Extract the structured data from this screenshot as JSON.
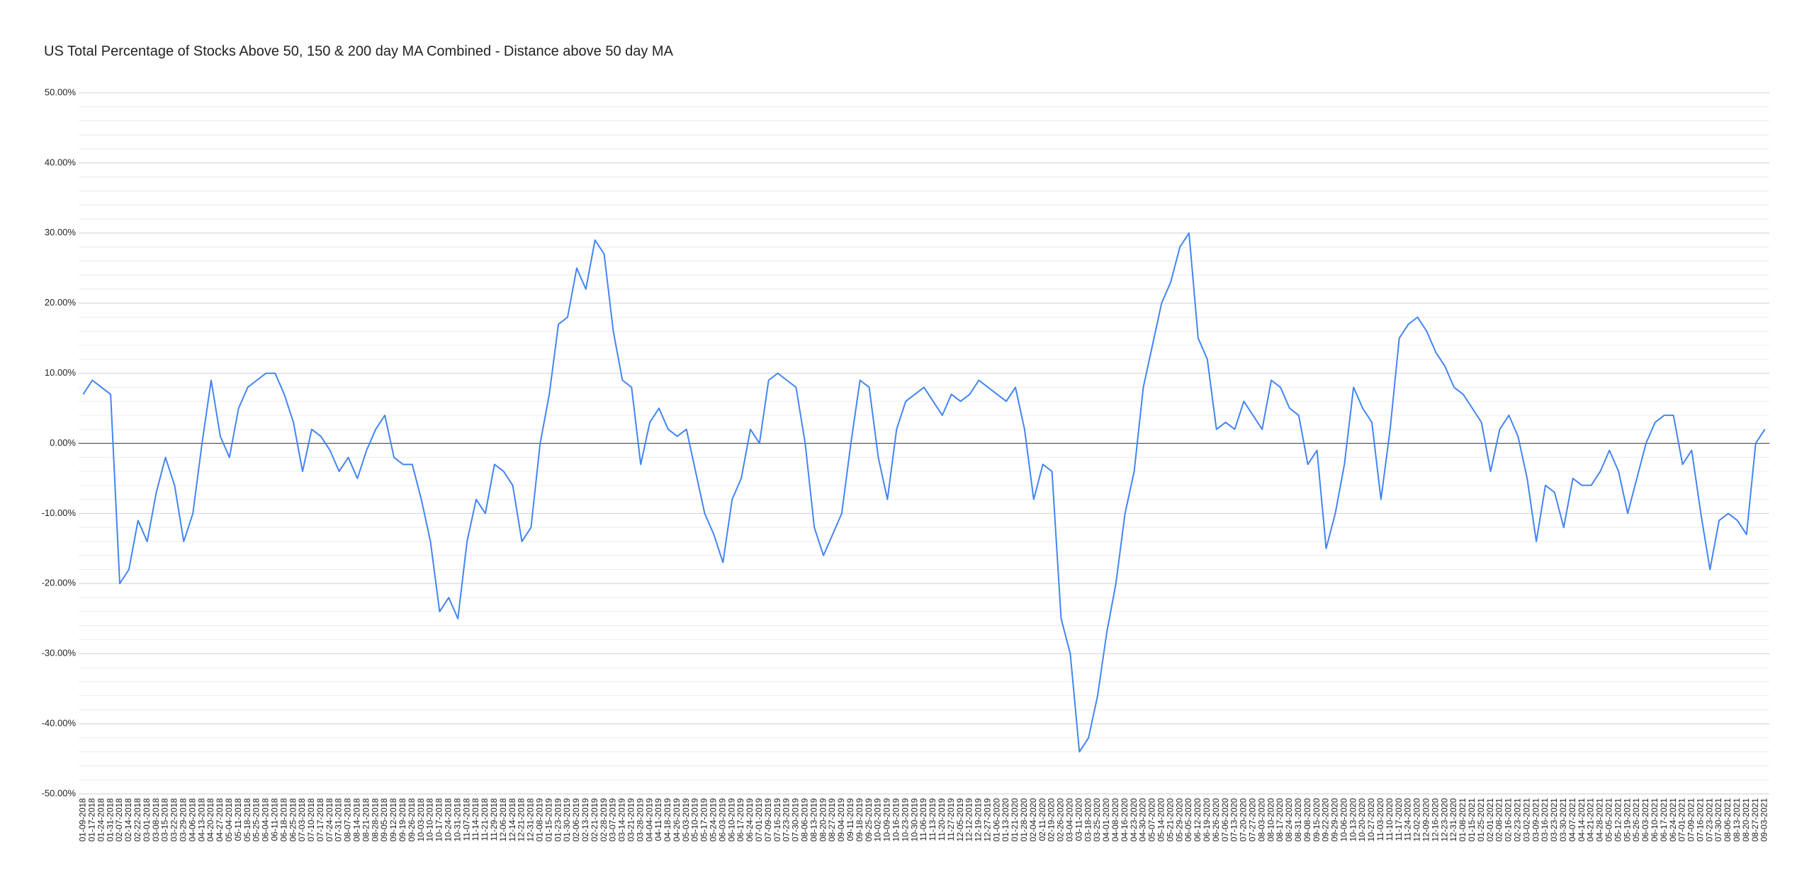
{
  "chart_data": {
    "type": "line",
    "title": "US Total Percentage of Stocks Above 50, 150 & 200 day MA Combined - Distance above 50 day MA",
    "categories": [
      "01-09-2018",
      "01-17-2018",
      "01-24-2018",
      "01-31-2018",
      "02-07-2018",
      "02-14-2018",
      "02-22-2018",
      "03-01-2018",
      "03-08-2018",
      "03-15-2018",
      "03-22-2018",
      "03-29-2018",
      "04-06-2018",
      "04-13-2018",
      "04-20-2018",
      "04-27-2018",
      "05-04-2018",
      "05-11-2018",
      "05-18-2018",
      "05-25-2018",
      "06-04-2018",
      "06-11-2018",
      "06-18-2018",
      "06-25-2018",
      "07-03-2018",
      "07-10-2018",
      "07-17-2018",
      "07-24-2018",
      "07-31-2018",
      "08-07-2018",
      "08-14-2018",
      "08-21-2018",
      "08-28-2018",
      "09-05-2018",
      "09-12-2018",
      "09-19-2018",
      "09-26-2018",
      "10-03-2018",
      "10-10-2018",
      "10-17-2018",
      "10-24-2018",
      "10-31-2018",
      "11-07-2018",
      "11-14-2018",
      "11-21-2018",
      "11-29-2018",
      "12-06-2018",
      "12-14-2018",
      "12-21-2018",
      "12-31-2018",
      "01-08-2019",
      "01-15-2019",
      "01-23-2019",
      "01-30-2019",
      "02-06-2019",
      "02-13-2019",
      "02-21-2019",
      "02-28-2019",
      "03-07-2019",
      "03-14-2019",
      "03-21-2019",
      "03-28-2019",
      "04-04-2019",
      "04-11-2019",
      "04-18-2019",
      "04-26-2019",
      "05-03-2019",
      "05-10-2019",
      "05-17-2019",
      "05-24-2019",
      "06-03-2019",
      "06-10-2019",
      "06-17-2019",
      "06-24-2019",
      "07-01-2019",
      "07-09-2019",
      "07-16-2019",
      "07-23-2019",
      "07-30-2019",
      "08-06-2019",
      "08-13-2019",
      "08-20-2019",
      "08-27-2019",
      "09-04-2019",
      "09-11-2019",
      "09-18-2019",
      "09-25-2019",
      "10-02-2019",
      "10-09-2019",
      "10-16-2019",
      "10-23-2019",
      "10-30-2019",
      "11-06-2019",
      "11-13-2019",
      "11-20-2019",
      "11-27-2019",
      "12-05-2019",
      "12-12-2019",
      "12-19-2019",
      "12-27-2019",
      "01-06-2020",
      "01-13-2020",
      "01-21-2020",
      "01-28-2020",
      "02-04-2020",
      "02-11-2020",
      "02-19-2020",
      "02-26-2020",
      "03-04-2020",
      "03-11-2020",
      "03-18-2020",
      "03-25-2020",
      "04-01-2020",
      "04-08-2020",
      "04-16-2020",
      "04-23-2020",
      "04-30-2020",
      "05-07-2020",
      "05-14-2020",
      "05-21-2020",
      "05-29-2020",
      "06-05-2020",
      "06-12-2020",
      "06-19-2020",
      "06-26-2020",
      "07-06-2020",
      "07-13-2020",
      "07-20-2020",
      "07-27-2020",
      "08-03-2020",
      "08-10-2020",
      "08-17-2020",
      "08-24-2020",
      "08-31-2020",
      "09-08-2020",
      "09-15-2020",
      "09-22-2020",
      "09-29-2020",
      "10-06-2020",
      "10-13-2020",
      "10-20-2020",
      "10-27-2020",
      "11-03-2020",
      "11-10-2020",
      "11-17-2020",
      "11-24-2020",
      "12-02-2020",
      "12-09-2020",
      "12-16-2020",
      "12-23-2020",
      "12-31-2020",
      "01-08-2021",
      "01-15-2021",
      "01-25-2021",
      "02-01-2021",
      "02-08-2021",
      "02-16-2021",
      "02-23-2021",
      "03-02-2021",
      "03-09-2021",
      "03-16-2021",
      "03-23-2021",
      "03-30-2021",
      "04-07-2021",
      "04-14-2021",
      "04-21-2021",
      "04-28-2021",
      "05-05-2021",
      "05-12-2021",
      "05-19-2021",
      "05-26-2021",
      "06-03-2021",
      "06-10-2021",
      "06-17-2021",
      "06-24-2021",
      "07-01-2021",
      "07-09-2021",
      "07-16-2021",
      "07-23-2021",
      "07-30-2021",
      "08-06-2021",
      "08-13-2021",
      "08-20-2021",
      "08-27-2021",
      "09-03-2021"
    ],
    "series": [
      {
        "name": "Distance above 50 day MA",
        "color": "#4285f4",
        "values": [
          7,
          9,
          8,
          7,
          -20,
          -18,
          -11,
          -14,
          -7,
          -2,
          -6,
          -14,
          -10,
          0,
          9,
          1,
          -2,
          5,
          8,
          9,
          10,
          10,
          7,
          3,
          -4,
          2,
          1,
          -1,
          -4,
          -2,
          -5,
          -1,
          2,
          4,
          -2,
          -3,
          -3,
          -8,
          -14,
          -24,
          -22,
          -25,
          -14,
          -8,
          -10,
          -3,
          -4,
          -6,
          -14,
          -12,
          0,
          7,
          17,
          18,
          25,
          22,
          29,
          27,
          16,
          9,
          8,
          -3,
          3,
          5,
          2,
          1,
          2,
          -4,
          -10,
          -13,
          -17,
          -8,
          -5,
          2,
          0,
          9,
          10,
          9,
          8,
          0,
          -12,
          -16,
          -13,
          -10,
          0,
          9,
          8,
          -2,
          -8,
          2,
          6,
          7,
          8,
          6,
          4,
          7,
          6,
          7,
          9,
          8,
          7,
          6,
          8,
          2,
          -8,
          -3,
          -4,
          -25,
          -30,
          -44,
          -42,
          -36,
          -27,
          -20,
          -10,
          -4,
          8,
          14,
          20,
          23,
          28,
          30,
          15,
          12,
          2,
          3,
          2,
          6,
          4,
          2,
          9,
          8,
          5,
          4,
          -3,
          -1,
          -15,
          -10,
          -3,
          8,
          5,
          3,
          -8,
          2,
          15,
          17,
          18,
          16,
          13,
          11,
          8,
          7,
          5,
          3,
          -4,
          2,
          4,
          1,
          -5,
          -14,
          -6,
          -7,
          -12,
          -5,
          -6,
          -6,
          -4,
          -1,
          -4,
          -10,
          -5,
          0,
          3,
          4,
          4,
          -3,
          -1,
          -10,
          -18,
          -11,
          -10,
          -11,
          -13,
          0,
          2
        ]
      }
    ],
    "ylim": [
      -50,
      50
    ],
    "yticks": [
      {
        "value": -50,
        "label": "-50.00%"
      },
      {
        "value": -40,
        "label": "-40.00%"
      },
      {
        "value": -30,
        "label": "-30.00%"
      },
      {
        "value": -20,
        "label": "-20.00%"
      },
      {
        "value": -10,
        "label": "-10.00%"
      },
      {
        "value": 0,
        "label": "0.00%"
      },
      {
        "value": 10,
        "label": "10.00%"
      },
      {
        "value": 20,
        "label": "20.00%"
      },
      {
        "value": 30,
        "label": "30.00%"
      },
      {
        "value": 40,
        "label": "40.00%"
      },
      {
        "value": 50,
        "label": "50.00%"
      }
    ],
    "minor_yticks": [
      -48,
      -46,
      -44,
      -42,
      -38,
      -36,
      -34,
      -32,
      -28,
      -26,
      -24,
      -22,
      -18,
      -16,
      -14,
      -12,
      -8,
      -6,
      -4,
      -2,
      2,
      4,
      6,
      8,
      12,
      14,
      16,
      18,
      22,
      24,
      26,
      28,
      32,
      34,
      36,
      38,
      42,
      44,
      46,
      48
    ],
    "grid": true,
    "legend": false
  }
}
